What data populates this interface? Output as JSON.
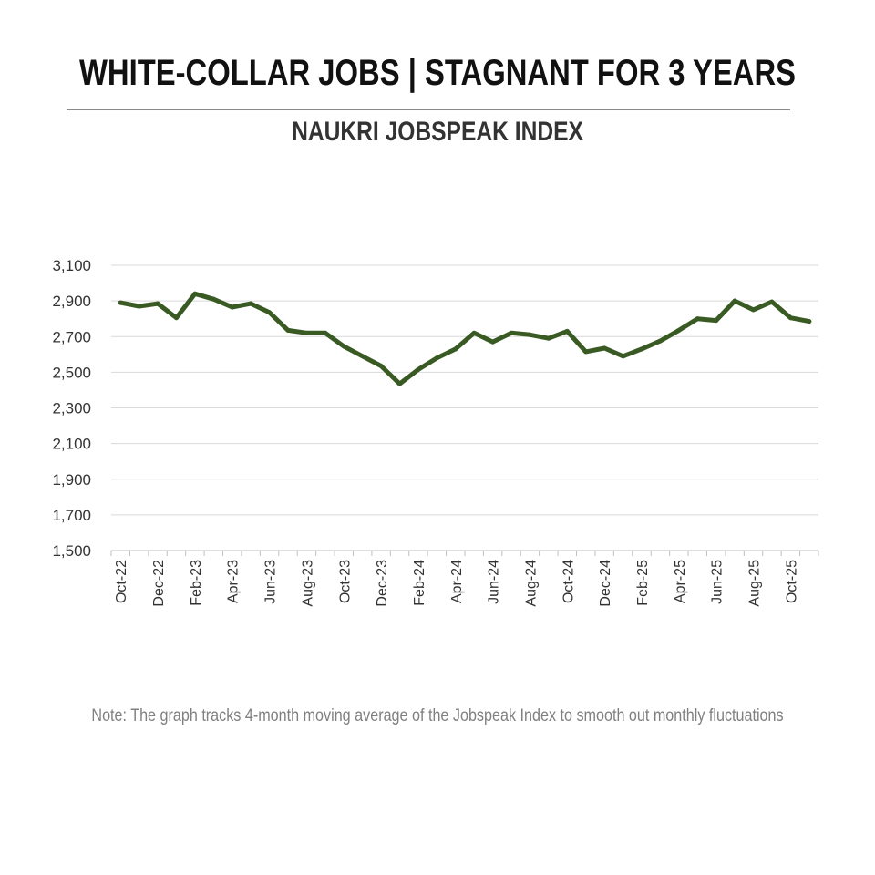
{
  "header": {
    "title": "WHITE-COLLAR JOBS | STAGNANT FOR 3 YEARS",
    "subtitle": "NAUKRI JOBSPEAK INDEX"
  },
  "note": "Note: The graph tracks 4-month moving average of the Jobspeak Index to smooth out monthly fluctuations",
  "colors": {
    "line": "#3a5a24",
    "grid": "#d9d9d9",
    "axis": "#bfbfbf"
  },
  "chart_data": {
    "type": "line",
    "title": "",
    "xlabel": "",
    "ylabel": "",
    "ylim": [
      1500,
      3100
    ],
    "yticks": [
      1500,
      1700,
      1900,
      2100,
      2300,
      2500,
      2700,
      2900,
      3100
    ],
    "ytick_labels": [
      "1,500",
      "1,700",
      "1,900",
      "2,100",
      "2,300",
      "2,500",
      "2,700",
      "2,900",
      "3,100"
    ],
    "grid": true,
    "legend": "none",
    "categories": [
      "Oct-22",
      "Nov-22",
      "Dec-22",
      "Jan-23",
      "Feb-23",
      "Mar-23",
      "Apr-23",
      "May-23",
      "Jun-23",
      "Jul-23",
      "Aug-23",
      "Sep-23",
      "Oct-23",
      "Nov-23",
      "Dec-23",
      "Jan-24",
      "Feb-24",
      "Mar-24",
      "Apr-24",
      "May-24",
      "Jun-24",
      "Jul-24",
      "Aug-24",
      "Sep-24",
      "Oct-24",
      "Nov-24",
      "Dec-24",
      "Jan-25",
      "Feb-25",
      "Mar-25",
      "Apr-25",
      "May-25",
      "Jun-25",
      "Jul-25",
      "Aug-25",
      "Sep-25",
      "Oct-25",
      "Nov-25"
    ],
    "xtick_labels": [
      "Oct-22",
      "Dec-22",
      "Feb-23",
      "Apr-23",
      "Jun-23",
      "Aug-23",
      "Oct-23",
      "Dec-23",
      "Feb-24",
      "Apr-24",
      "Jun-24",
      "Aug-24",
      "Oct-24",
      "Dec-24",
      "Feb-25",
      "Apr-25",
      "Jun-25",
      "Aug-25",
      "Oct-25"
    ],
    "series": [
      {
        "values": [
          2890,
          2870,
          2885,
          2805,
          2940,
          2910,
          2865,
          2885,
          2835,
          2735,
          2720,
          2720,
          2645,
          2590,
          2535,
          2435,
          2515,
          2580,
          2630,
          2720,
          2670,
          2720,
          2710,
          2690,
          2730,
          2615,
          2635,
          2590,
          2630,
          2675,
          2735,
          2800,
          2790,
          2900,
          2850,
          2895,
          2805,
          2785
        ]
      }
    ]
  }
}
